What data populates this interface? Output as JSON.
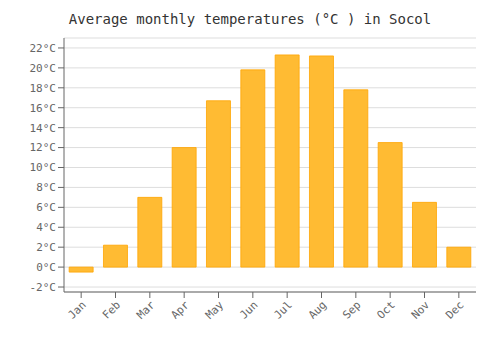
{
  "chart_data": {
    "type": "bar",
    "title": "Average monthly temperatures (°C ) in Socol",
    "categories": [
      "Jan",
      "Feb",
      "Mar",
      "Apr",
      "May",
      "Jun",
      "Jul",
      "Aug",
      "Sep",
      "Oct",
      "Nov",
      "Dec"
    ],
    "values": [
      -0.5,
      2.2,
      7.0,
      12.0,
      16.7,
      19.8,
      21.3,
      21.2,
      17.8,
      12.5,
      6.5,
      2.0
    ],
    "color": "#FFBB33",
    "ylim": [
      -2.5,
      23.0
    ],
    "yticks": [
      {
        "value": -2,
        "label": "-2°C"
      },
      {
        "value": 0,
        "label": "0°C"
      },
      {
        "value": 2,
        "label": "2°C"
      },
      {
        "value": 4,
        "label": "4°C"
      },
      {
        "value": 6,
        "label": "6°C"
      },
      {
        "value": 8,
        "label": "8°C"
      },
      {
        "value": 10,
        "label": "10°C"
      },
      {
        "value": 12,
        "label": "12°C"
      },
      {
        "value": 14,
        "label": "14°C"
      },
      {
        "value": 16,
        "label": "16°C"
      },
      {
        "value": 18,
        "label": "18°C"
      },
      {
        "value": 20,
        "label": "20°C"
      },
      {
        "value": 22,
        "label": "22°C"
      }
    ],
    "grid": true
  }
}
